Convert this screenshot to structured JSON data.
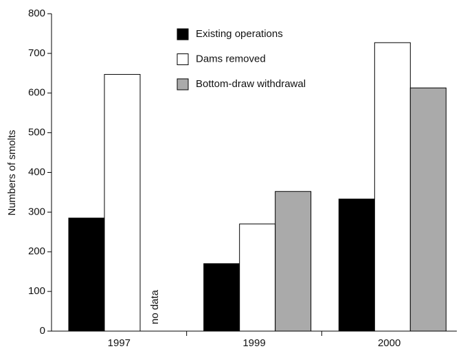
{
  "chart_data": {
    "type": "bar",
    "y_label": "Numbers of smolts",
    "categories": [
      "1997",
      "1999",
      "2000"
    ],
    "series": [
      {
        "name": "Existing operations",
        "color": "#000000",
        "values": [
          285,
          170,
          333
        ]
      },
      {
        "name": "Dams removed",
        "color": "#ffffff",
        "values": [
          647,
          270,
          727
        ]
      },
      {
        "name": "Bottom-draw withdrawal",
        "color": "#aaaaaa",
        "values": [
          null,
          352,
          613
        ]
      }
    ],
    "annotation": "no data",
    "ylim": [
      0,
      800
    ],
    "yticks": [
      0,
      100,
      200,
      300,
      400,
      500,
      600,
      700,
      800
    ]
  }
}
